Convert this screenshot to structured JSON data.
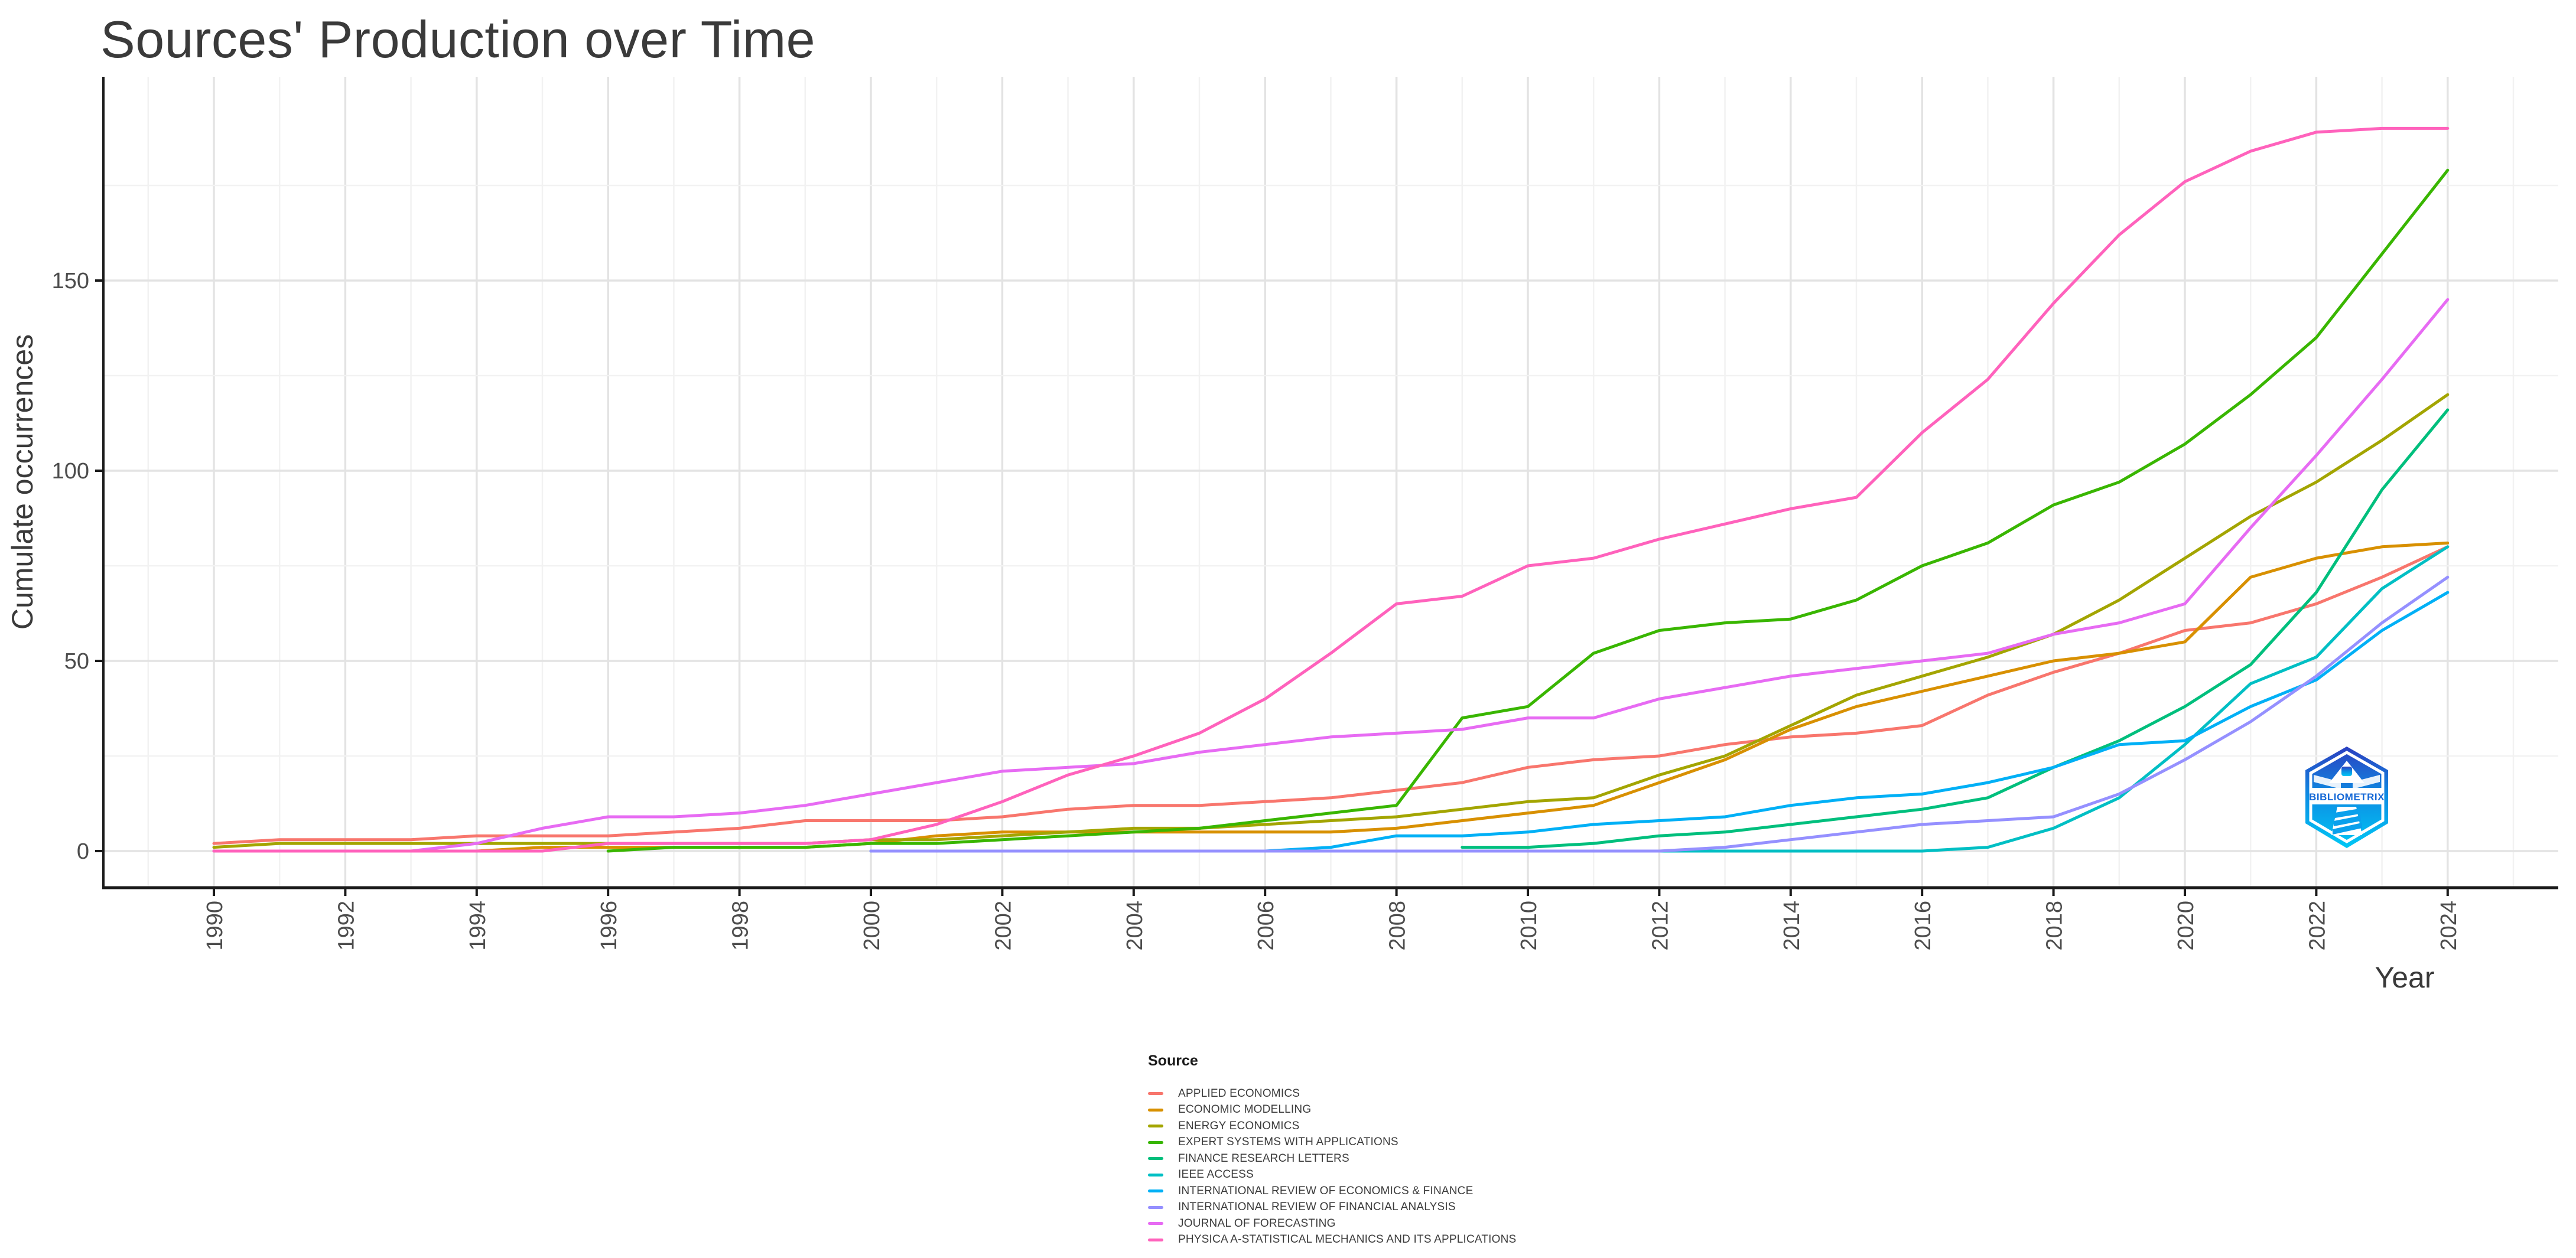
{
  "title": "Sources' Production over Time",
  "watermark": "BIBLIOMETRIX",
  "axes": {
    "x_label": "Year",
    "y_label": "Cumulate occurrences"
  },
  "legend": {
    "title": "Source"
  },
  "chart_data": {
    "type": "line",
    "title": "Sources' Production over Time",
    "xlabel": "Year",
    "ylabel": "Cumulate occurrences",
    "x_ticks": [
      1990,
      1992,
      1994,
      1996,
      1998,
      2000,
      2002,
      2004,
      2006,
      2008,
      2010,
      2012,
      2014,
      2016,
      2018,
      2020,
      2022,
      2024
    ],
    "y_ticks": [
      0,
      50,
      100,
      150
    ],
    "xlim": [
      1988.3,
      2025.7
    ],
    "ylim": [
      0,
      190
    ],
    "grid": "major and minor, light grey, white background",
    "legend_position": "bottom",
    "series": [
      {
        "name": "APPLIED ECONOMICS",
        "color": "#F8766D",
        "start_year": 1990,
        "values": [
          2,
          3,
          3,
          3,
          4,
          4,
          4,
          5,
          6,
          8,
          8,
          8,
          9,
          11,
          12,
          12,
          13,
          14,
          16,
          18,
          22,
          24,
          25,
          28,
          30,
          31,
          33,
          41,
          47,
          52,
          58,
          60,
          65,
          72,
          80
        ]
      },
      {
        "name": "ECONOMIC MODELLING",
        "color": "#D89000",
        "start_year": 1994,
        "values": [
          0,
          1,
          1,
          1,
          1,
          1,
          2,
          4,
          5,
          5,
          5,
          5,
          5,
          5,
          6,
          8,
          10,
          12,
          18,
          24,
          32,
          38,
          42,
          46,
          50,
          52,
          55,
          72,
          77,
          80,
          81
        ]
      },
      {
        "name": "ENERGY ECONOMICS",
        "color": "#A3A500",
        "start_year": 1990,
        "values": [
          1,
          2,
          2,
          2,
          2,
          2,
          2,
          2,
          2,
          2,
          3,
          3,
          4,
          5,
          6,
          6,
          7,
          8,
          9,
          11,
          13,
          14,
          20,
          25,
          33,
          41,
          46,
          51,
          57,
          66,
          77,
          88,
          97,
          108,
          120
        ]
      },
      {
        "name": "EXPERT SYSTEMS WITH APPLICATIONS",
        "color": "#39B600",
        "start_year": 1996,
        "values": [
          0,
          1,
          1,
          1,
          2,
          2,
          3,
          4,
          5,
          6,
          8,
          10,
          12,
          35,
          38,
          52,
          58,
          60,
          61,
          66,
          75,
          81,
          91,
          97,
          107,
          120,
          135,
          157,
          179
        ]
      },
      {
        "name": "FINANCE RESEARCH LETTERS",
        "color": "#00BF7D",
        "start_year": 2009,
        "values": [
          1,
          1,
          2,
          4,
          5,
          7,
          9,
          11,
          14,
          22,
          29,
          38,
          49,
          68,
          95,
          116
        ]
      },
      {
        "name": "IEEE ACCESS",
        "color": "#00BFC4",
        "start_year": 2008,
        "values": [
          0,
          0,
          0,
          0,
          0,
          0,
          0,
          0,
          0,
          1,
          6,
          14,
          28,
          44,
          51,
          69,
          80
        ]
      },
      {
        "name": "INTERNATIONAL REVIEW OF ECONOMICS & FINANCE",
        "color": "#00B0F6",
        "start_year": 2000,
        "values": [
          0,
          0,
          0,
          0,
          0,
          0,
          0,
          1,
          4,
          4,
          5,
          7,
          8,
          9,
          12,
          14,
          15,
          18,
          22,
          28,
          29,
          38,
          45,
          58,
          68
        ]
      },
      {
        "name": "INTERNATIONAL REVIEW OF FINANCIAL ANALYSIS",
        "color": "#9590FF",
        "start_year": 2000,
        "values": [
          0,
          0,
          0,
          0,
          0,
          0,
          0,
          0,
          0,
          0,
          0,
          0,
          0,
          1,
          3,
          5,
          7,
          8,
          9,
          15,
          24,
          34,
          46,
          60,
          72
        ]
      },
      {
        "name": "JOURNAL OF FORECASTING",
        "color": "#E76BF3",
        "start_year": 1990,
        "values": [
          0,
          0,
          0,
          0,
          2,
          6,
          9,
          9,
          10,
          12,
          15,
          18,
          21,
          22,
          23,
          26,
          28,
          30,
          31,
          32,
          35,
          35,
          40,
          43,
          46,
          48,
          50,
          52,
          57,
          60,
          65,
          85,
          104,
          124,
          145
        ]
      },
      {
        "name": "PHYSICA A-STATISTICAL MECHANICS AND ITS APPLICATIONS",
        "color": "#FF62BC",
        "start_year": 1990,
        "values": [
          0,
          0,
          0,
          0,
          0,
          0,
          2,
          2,
          2,
          2,
          3,
          7,
          13,
          20,
          25,
          31,
          40,
          52,
          65,
          67,
          75,
          77,
          82,
          86,
          90,
          93,
          110,
          124,
          144,
          162,
          176,
          184,
          189,
          190,
          190
        ]
      }
    ]
  }
}
